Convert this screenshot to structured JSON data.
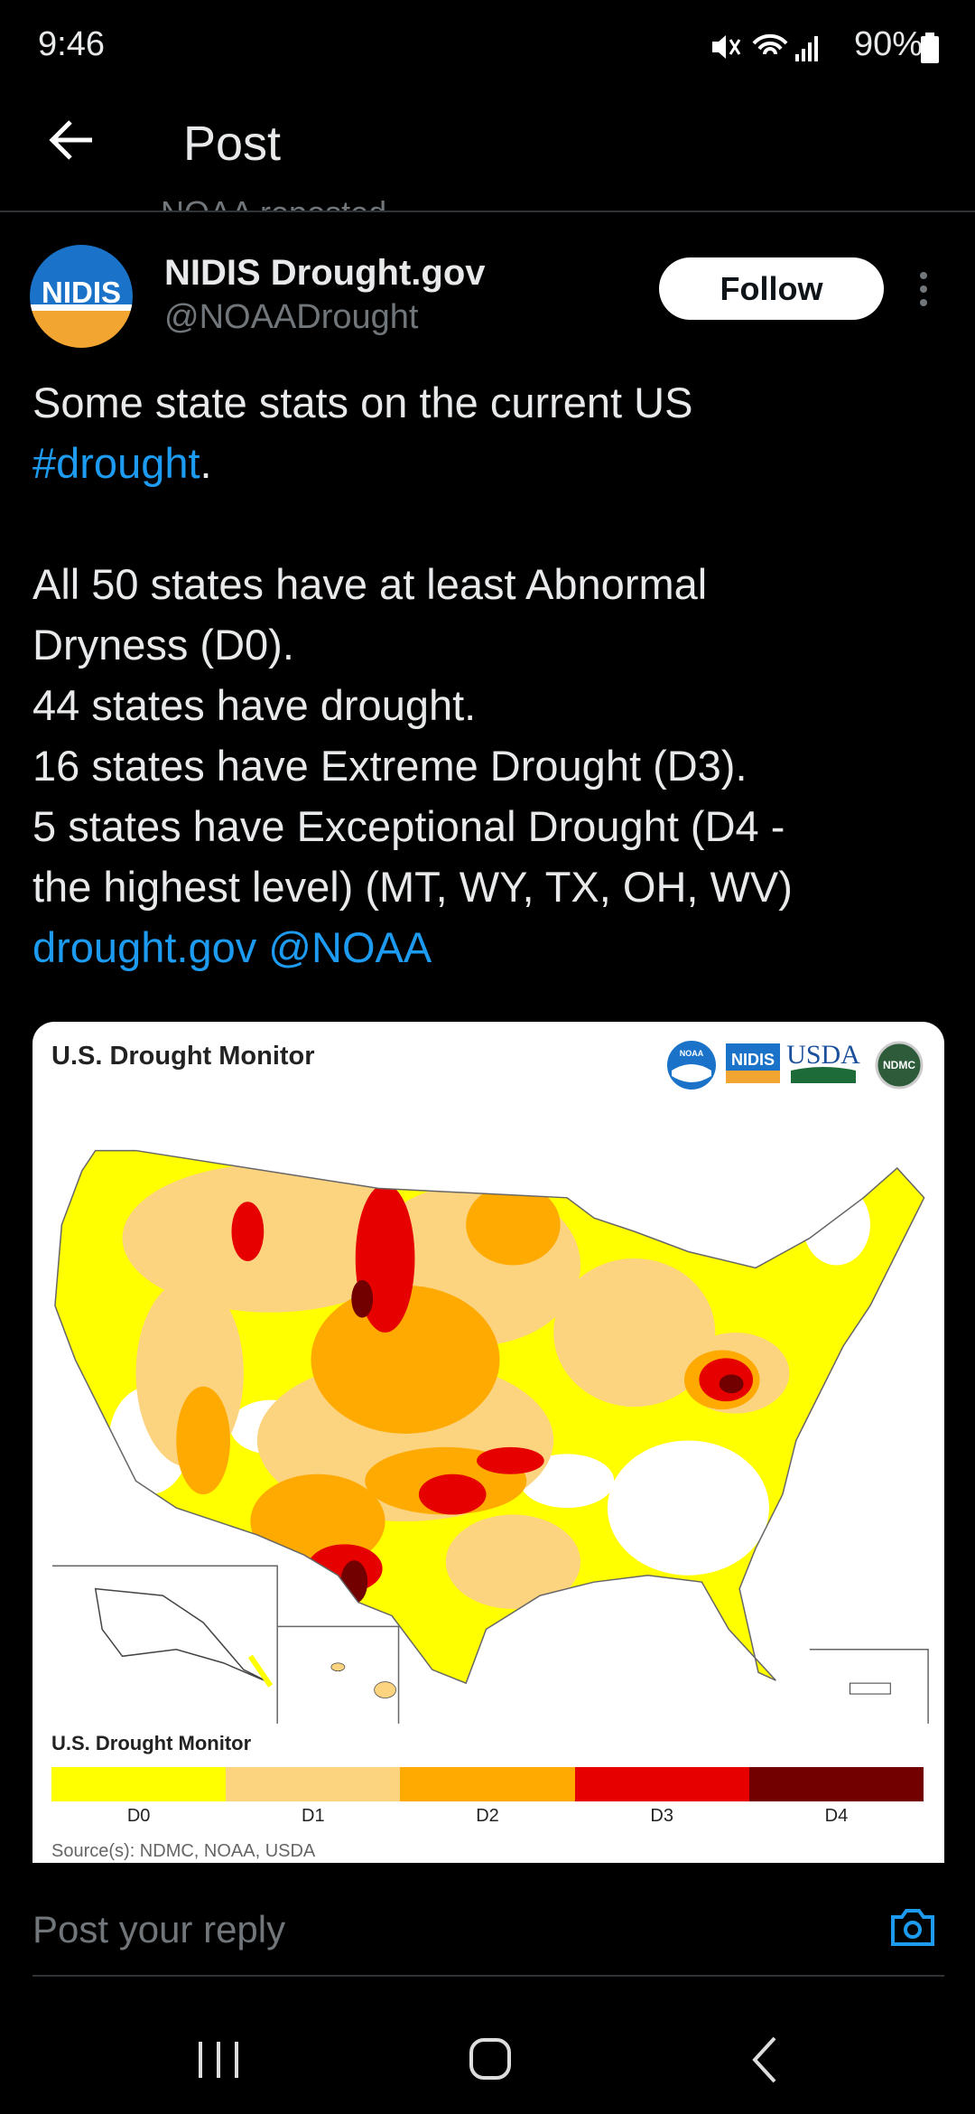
{
  "status_bar": {
    "time": "9:46",
    "battery": "90%"
  },
  "header": {
    "title": "Post"
  },
  "repost_note": "NOAA reposted",
  "post": {
    "author": {
      "name": "NIDIS Drought.gov",
      "handle": "@NOAADrought",
      "avatar_label": "NIDIS"
    },
    "follow_button": "Follow",
    "paragraphs": [
      [
        [
          {
            "text": "Some state stats on the current US",
            "link": false
          }
        ],
        [
          {
            "text": "#drought",
            "link": true
          },
          {
            "text": ".",
            "link": false
          }
        ]
      ],
      [
        [
          {
            "text": "All 50 states have at least Abnormal",
            "link": false
          }
        ],
        [
          {
            "text": "Dryness (D0).",
            "link": false
          }
        ],
        [
          {
            "text": "44 states have drought.",
            "link": false
          }
        ],
        [
          {
            "text": "16 states have Extreme Drought (D3).",
            "link": false
          }
        ],
        [
          {
            "text": "5 states have Exceptional Drought (D4 -",
            "link": false
          }
        ],
        [
          {
            "text": "the highest level) (MT, WY, TX, OH, WV)",
            "link": false
          }
        ],
        [
          {
            "text": "drought.gov @NOAA",
            "link": true
          }
        ]
      ]
    ],
    "card": {
      "title": "U.S. Drought Monitor",
      "logos": [
        "NOAA",
        "NIDIS",
        "USDA",
        "NDMC"
      ],
      "legend": {
        "title": "U.S. Drought Monitor",
        "items": [
          {
            "label": "D0",
            "color": "#ffff00"
          },
          {
            "label": "D1",
            "color": "#fcd37f"
          },
          {
            "label": "D2",
            "color": "#ffaa00"
          },
          {
            "label": "D3",
            "color": "#e60000"
          },
          {
            "label": "D4",
            "color": "#730000"
          }
        ]
      },
      "source": "Source(s): NDMC, NOAA, USDA"
    }
  },
  "reply_placeholder": "Post your reply"
}
